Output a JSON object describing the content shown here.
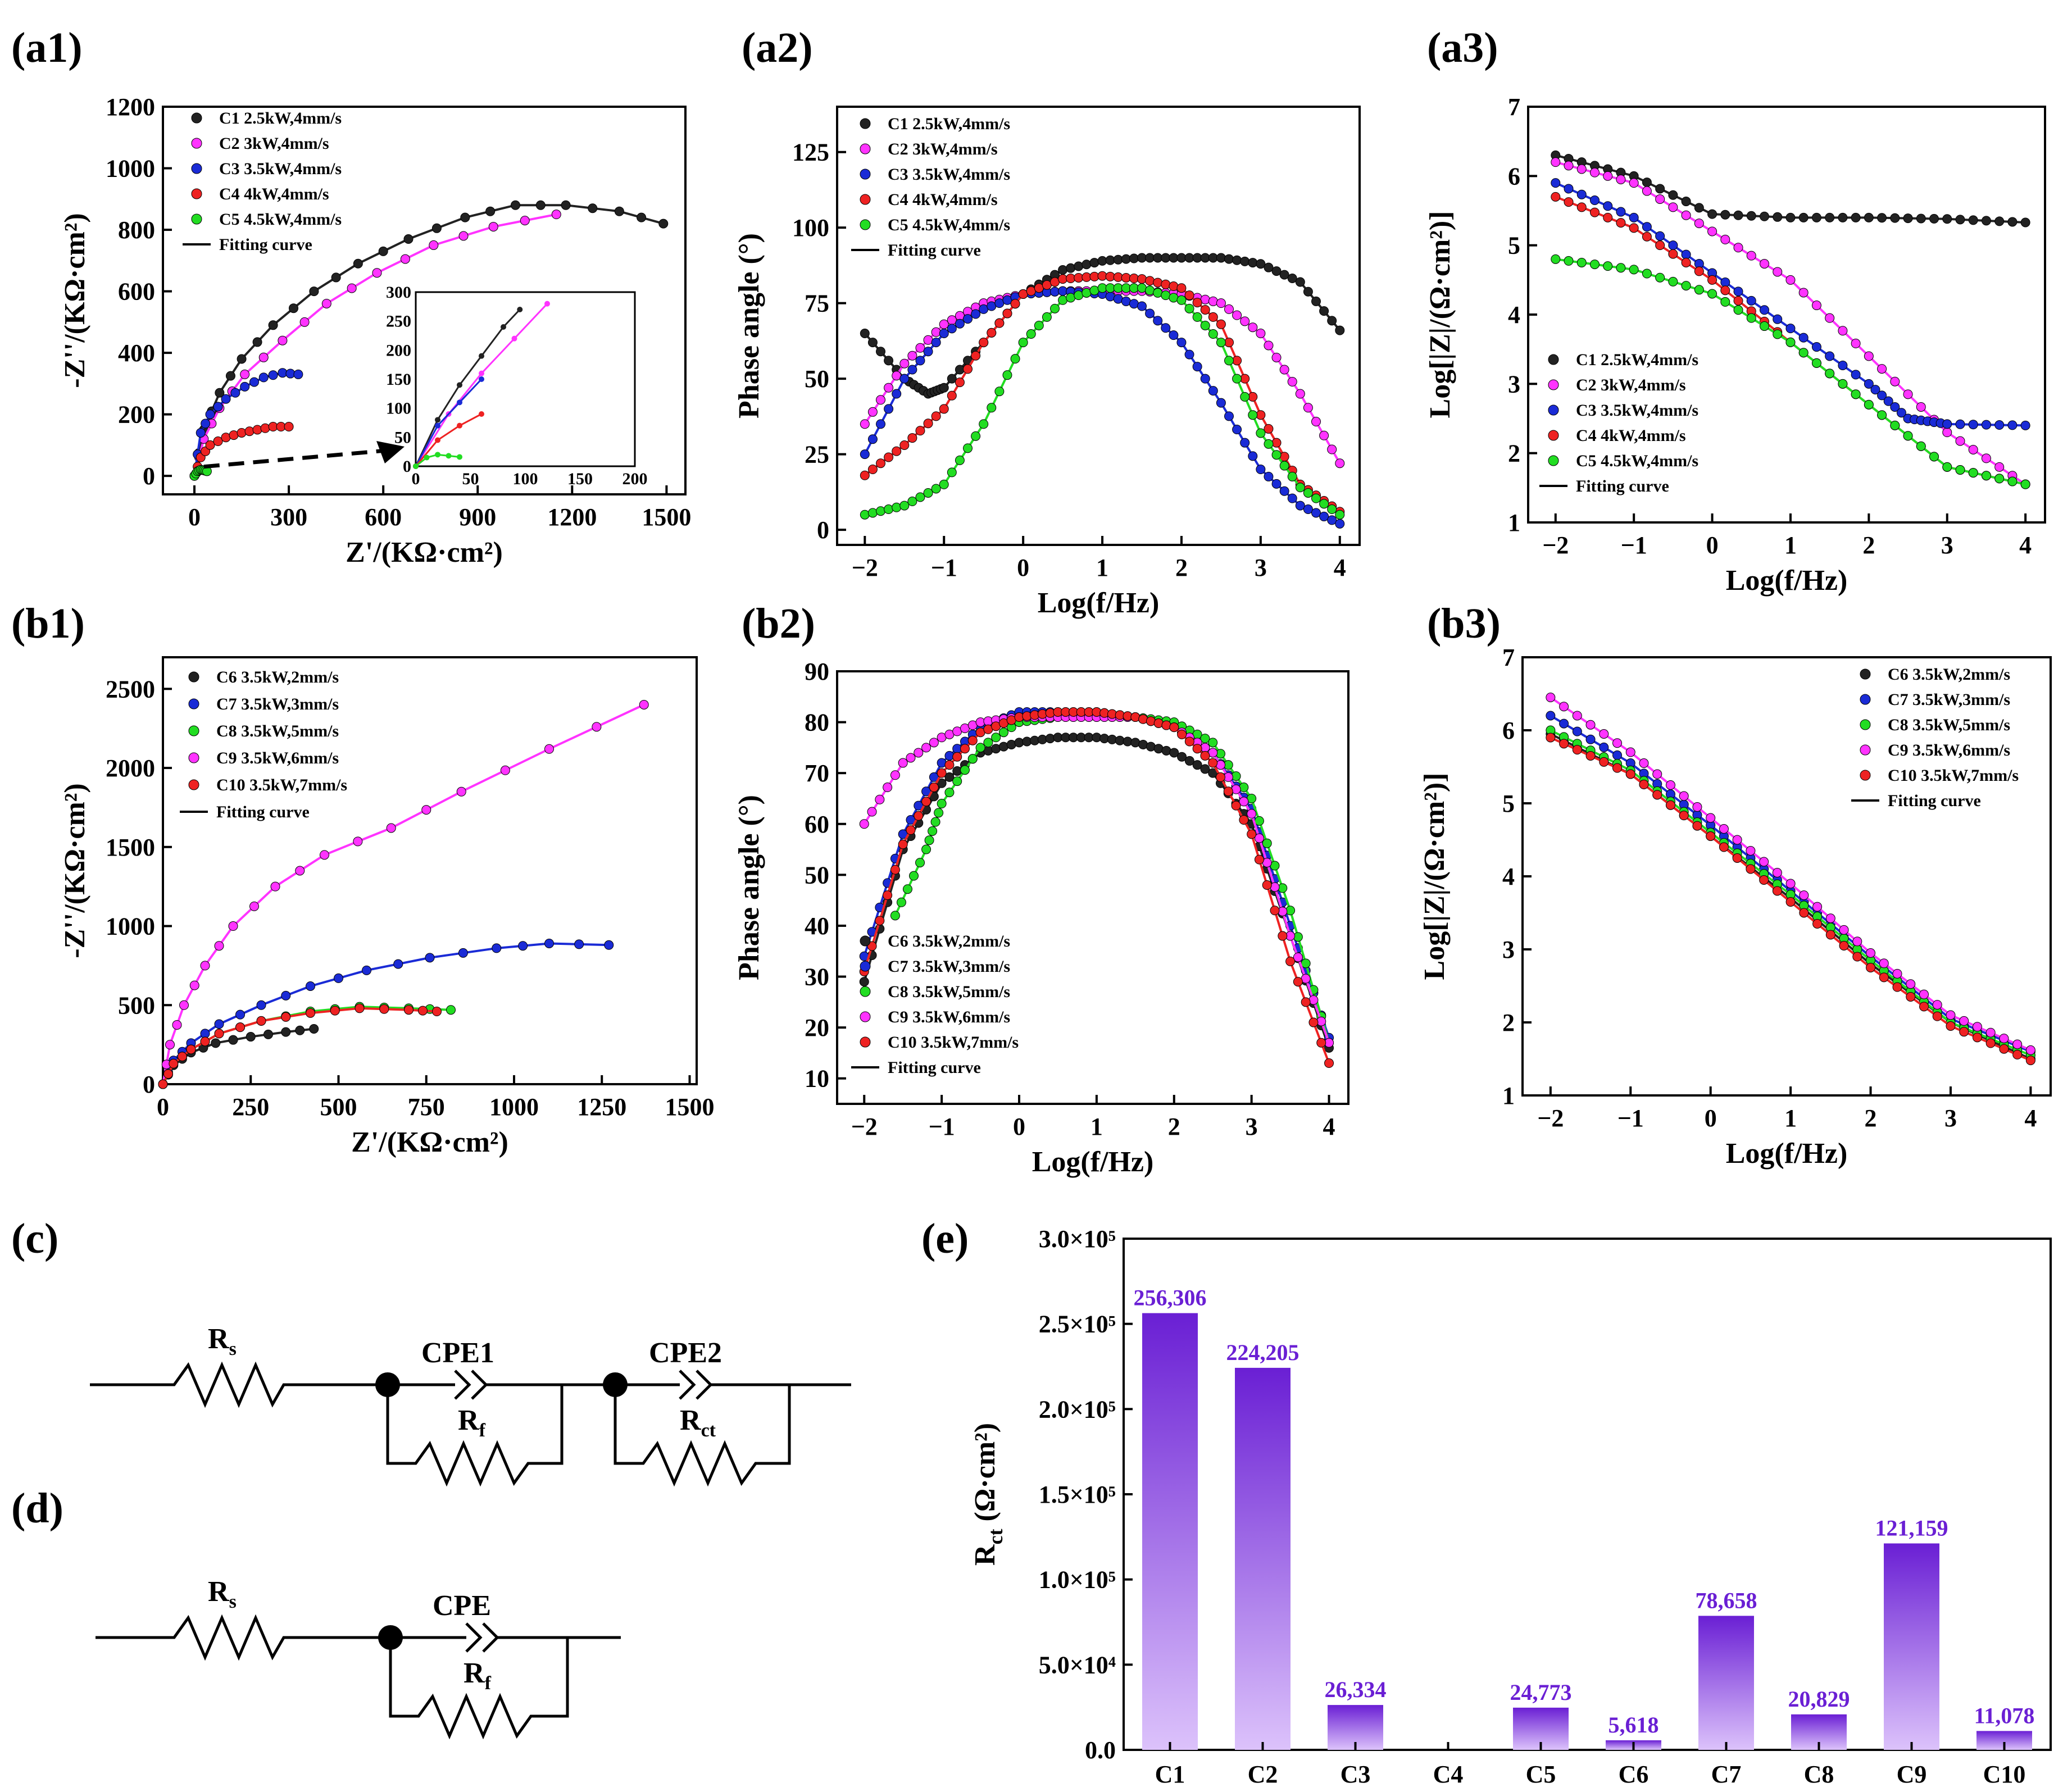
{
  "panel_labels": {
    "a1": "(a1)",
    "a2": "(a2)",
    "a3": "(a3)",
    "b1": "(b1)",
    "b2": "(b2)",
    "b3": "(b3)",
    "c": "(c)",
    "d": "(d)",
    "e": "(e)"
  },
  "colors": {
    "C1": "#222222",
    "C2": "#ff33ff",
    "C3": "#1a2bd6",
    "C4": "#ee2222",
    "C5": "#22dd22",
    "C6": "#222222",
    "C7": "#1a2bd6",
    "C8": "#22dd22",
    "C9": "#ff33ff",
    "C10": "#ee2222",
    "bar_top": "#6a1fd4",
    "bar_bottom": "#dcc2fb"
  },
  "legend_a": [
    "C1 2.5kW,4mm/s",
    "C2 3kW,4mm/s",
    "C3 3.5kW,4mm/s",
    "C4 4kW,4mm/s",
    "C5 4.5kW,4mm/s",
    "Fitting curve"
  ],
  "legend_b": [
    "C6 3.5kW,2mm/s",
    "C7 3.5kW,3mm/s",
    "C8 3.5kW,5mm/s",
    "C9 3.5kW,6mm/s",
    "C10 3.5kW,7mm/s",
    "Fitting curve"
  ],
  "circuit_c": {
    "rs": "R",
    "rs_sub": "s",
    "cpe1": "CPE1",
    "cpe2": "CPE2",
    "rf": "R",
    "rf_sub": "f",
    "rct": "R",
    "rct_sub": "ct"
  },
  "circuit_d": {
    "rs": "R",
    "rs_sub": "s",
    "cpe": "CPE",
    "rf": "R",
    "rf_sub": "f"
  },
  "chart_data": [
    {
      "id": "a1",
      "type": "scatter",
      "title": "",
      "xlabel": "Z'/(KΩ·cm²)",
      "ylabel": "-Z''/(KΩ·cm²)",
      "xlim": [
        -100,
        1560
      ],
      "ylim": [
        -60,
        1200
      ],
      "xticks": [
        0,
        300,
        600,
        900,
        1200,
        1500
      ],
      "yticks": [
        0,
        200,
        400,
        600,
        800,
        1000,
        1200
      ],
      "series": [
        {
          "name": "C1 2.5kW,4mm/s",
          "x": [
            0,
            30,
            80,
            150,
            250,
            380,
            520,
            680,
            860,
            1020,
            1180,
            1350,
            1490
          ],
          "y": [
            0,
            150,
            270,
            380,
            490,
            600,
            690,
            770,
            840,
            880,
            880,
            860,
            820
          ]
        },
        {
          "name": "C2 3kW,4mm/s",
          "x": [
            0,
            30,
            80,
            160,
            280,
            420,
            580,
            760,
            950,
            1150
          ],
          "y": [
            0,
            120,
            220,
            330,
            440,
            560,
            660,
            750,
            810,
            850
          ]
        },
        {
          "name": "C3 3.5kW,4mm/s",
          "x": [
            0,
            20,
            50,
            100,
            160,
            220,
            280,
            330
          ],
          "y": [
            0,
            140,
            200,
            250,
            290,
            320,
            335,
            330
          ]
        },
        {
          "name": "C4 4kW,4mm/s",
          "x": [
            0,
            20,
            50,
            100,
            150,
            200,
            250,
            300
          ],
          "y": [
            0,
            60,
            100,
            125,
            140,
            150,
            160,
            160
          ]
        },
        {
          "name": "C5 4.5kW,4mm/s",
          "x": [
            0,
            10,
            20,
            30,
            40
          ],
          "y": [
            0,
            15,
            20,
            18,
            15
          ]
        }
      ],
      "inset": {
        "xlim": [
          0,
          200
        ],
        "ylim": [
          0,
          300
        ],
        "xticks": [
          0,
          50,
          100,
          150,
          200
        ],
        "yticks": [
          0,
          50,
          100,
          150,
          200,
          250,
          300
        ]
      }
    },
    {
      "id": "a2",
      "type": "scatter",
      "xlabel": "Log(f/Hz)",
      "ylabel": "Phase angle (°)",
      "xlim": [
        -2.35,
        4.25
      ],
      "ylim": [
        -5,
        140
      ],
      "xticks": [
        -2,
        -1,
        0,
        1,
        2,
        3,
        4
      ],
      "yticks": [
        0,
        25,
        50,
        75,
        100,
        125
      ],
      "series": [
        {
          "name": "C1 2.5kW,4mm/s",
          "x": [
            -2,
            -1.5,
            -1.2,
            -1,
            -0.5,
            0,
            0.5,
            1,
            1.5,
            2,
            2.5,
            3,
            3.5,
            4
          ],
          "y": [
            65,
            50,
            45,
            47,
            62,
            78,
            86,
            89,
            90,
            90,
            90,
            88,
            82,
            66
          ]
        },
        {
          "name": "C2 3kW,4mm/s",
          "x": [
            -2,
            -1.5,
            -1,
            -0.5,
            0,
            0.5,
            1,
            1.5,
            2,
            2.5,
            3,
            3.5,
            4
          ],
          "y": [
            35,
            55,
            68,
            75,
            78,
            79,
            79,
            79,
            78,
            75,
            65,
            45,
            22
          ]
        },
        {
          "name": "C3 3.5kW,4mm/s",
          "x": [
            -2,
            -1.5,
            -1,
            -0.5,
            0,
            0.5,
            1,
            1.5,
            2,
            2.5,
            3,
            3.5,
            4
          ],
          "y": [
            25,
            50,
            65,
            73,
            78,
            79,
            78,
            74,
            62,
            42,
            20,
            8,
            2
          ]
        },
        {
          "name": "C4 4kW,4mm/s",
          "x": [
            -2,
            -1.5,
            -1,
            -0.5,
            0,
            0.5,
            1,
            1.5,
            2,
            2.5,
            3,
            3.5,
            4
          ],
          "y": [
            18,
            28,
            40,
            62,
            78,
            83,
            84,
            83,
            80,
            68,
            38,
            15,
            6
          ]
        },
        {
          "name": "C5 4.5kW,4mm/s",
          "x": [
            -2,
            -1.5,
            -1,
            -0.5,
            0,
            0.5,
            1,
            1.5,
            2,
            2.5,
            3,
            3.5,
            4
          ],
          "y": [
            5,
            8,
            15,
            35,
            62,
            76,
            80,
            80,
            76,
            62,
            32,
            14,
            5
          ]
        }
      ]
    },
    {
      "id": "a3",
      "type": "scatter",
      "xlabel": "Log(f/Hz)",
      "ylabel": "Log[|Z|/(Ω·cm²)]",
      "xlim": [
        -2.35,
        4.25
      ],
      "ylim": [
        1,
        7
      ],
      "xticks": [
        -2,
        -1,
        0,
        1,
        2,
        3,
        4
      ],
      "yticks": [
        1,
        2,
        3,
        4,
        5,
        6,
        7
      ],
      "series": [
        {
          "name": "C1 2.5kW,4mm/s",
          "x": [
            -2,
            -1,
            0,
            1,
            2,
            3,
            4
          ],
          "y": [
            6.3,
            6.0,
            5.45,
            5.4,
            5.4,
            5.38,
            5.33
          ]
        },
        {
          "name": "C2 3kW,4mm/s",
          "x": [
            -2,
            -1,
            0,
            1,
            2,
            3,
            4
          ],
          "y": [
            6.2,
            5.9,
            5.2,
            4.5,
            3.4,
            2.3,
            1.55
          ]
        },
        {
          "name": "C3 3.5kW,4mm/s",
          "x": [
            -2,
            -1,
            0,
            1,
            2,
            2.5,
            3,
            4
          ],
          "y": [
            5.9,
            5.4,
            4.6,
            3.8,
            3.0,
            2.5,
            2.42,
            2.4
          ]
        },
        {
          "name": "C4 4kW,4mm/s",
          "x": [
            -2,
            -1,
            0,
            1,
            2,
            3,
            4
          ],
          "y": [
            5.7,
            5.25,
            4.5,
            3.6,
            2.7,
            1.8,
            1.55
          ]
        },
        {
          "name": "C5 4.5kW,4mm/s",
          "x": [
            -2,
            -1,
            0,
            1,
            2,
            3,
            4
          ],
          "y": [
            4.8,
            4.65,
            4.3,
            3.6,
            2.7,
            1.8,
            1.55
          ]
        }
      ]
    },
    {
      "id": "b1",
      "type": "scatter",
      "xlabel": "Z'/(KΩ·cm²)",
      "ylabel": "-Z''/(KΩ·cm²)",
      "xlim": [
        0,
        1520
      ],
      "ylim": [
        0,
        2700
      ],
      "xticks": [
        0,
        250,
        500,
        750,
        1000,
        1250,
        1500
      ],
      "yticks": [
        0,
        500,
        1000,
        1500,
        2000,
        2500
      ],
      "series": [
        {
          "name": "C6 3.5kW,2mm/s",
          "x": [
            0,
            30,
            80,
            150,
            250,
            350,
            430
          ],
          "y": [
            0,
            120,
            200,
            260,
            300,
            330,
            350
          ]
        },
        {
          "name": "C7 3.5kW,3mm/s",
          "x": [
            0,
            30,
            80,
            160,
            280,
            420,
            580,
            760,
            950,
            1100,
            1270
          ],
          "y": [
            0,
            150,
            260,
            380,
            500,
            620,
            720,
            800,
            860,
            890,
            880
          ]
        },
        {
          "name": "C8 3.5kW,5mm/s",
          "x": [
            0,
            30,
            80,
            160,
            280,
            420,
            560,
            700,
            820
          ],
          "y": [
            0,
            130,
            220,
            320,
            400,
            460,
            490,
            480,
            470
          ]
        },
        {
          "name": "C9 3.5kW,6mm/s",
          "x": [
            0,
            20,
            60,
            120,
            200,
            320,
            460,
            650,
            850,
            1100,
            1370
          ],
          "y": [
            0,
            250,
            500,
            750,
            1000,
            1250,
            1450,
            1620,
            1850,
            2120,
            2400
          ]
        },
        {
          "name": "C10 3.5kW,7mm/s",
          "x": [
            0,
            30,
            80,
            160,
            280,
            420,
            560,
            700,
            780
          ],
          "y": [
            0,
            130,
            220,
            320,
            400,
            450,
            480,
            470,
            460
          ]
        }
      ]
    },
    {
      "id": "b2",
      "type": "scatter",
      "xlabel": "Log(f/Hz)",
      "ylabel": "Phase angle (°)",
      "xlim": [
        -2.35,
        4.25
      ],
      "ylim": [
        5,
        90
      ],
      "xticks": [
        -2,
        -1,
        0,
        1,
        2,
        3,
        4
      ],
      "yticks": [
        10,
        20,
        30,
        40,
        50,
        60,
        70,
        80,
        90
      ],
      "series": [
        {
          "name": "C6 3.5kW,2mm/s",
          "x": [
            -2,
            -1.5,
            -1,
            -0.5,
            0,
            0.5,
            1,
            1.5,
            2,
            2.5,
            3,
            3.5,
            4
          ],
          "y": [
            29,
            55,
            68,
            74,
            76,
            77,
            77,
            76,
            74,
            70,
            60,
            38,
            16
          ]
        },
        {
          "name": "C7 3.5kW,3mm/s",
          "x": [
            -2,
            -1.5,
            -1,
            -0.5,
            0,
            0.5,
            1,
            1.5,
            2,
            2.5,
            3,
            3.5,
            4
          ],
          "y": [
            34,
            58,
            72,
            79,
            82,
            82,
            82,
            81,
            79,
            74,
            63,
            40,
            18
          ]
        },
        {
          "name": "C8 3.5kW,5mm/s",
          "x": [
            -1.6,
            -1.2,
            -1,
            -0.5,
            0,
            0.5,
            1,
            1.5,
            2,
            2.5,
            3,
            3.5,
            4
          ],
          "y": [
            42,
            55,
            64,
            75,
            80,
            81,
            81,
            81,
            80,
            76,
            65,
            43,
            17
          ]
        },
        {
          "name": "C9 3.5kW,6mm/s",
          "x": [
            -2,
            -1.5,
            -1,
            -0.5,
            0,
            0.5,
            1,
            1.5,
            2,
            2.5,
            3,
            3.5,
            4
          ],
          "y": [
            60,
            72,
            77,
            80,
            81,
            81,
            81,
            81,
            79,
            74,
            62,
            38,
            17
          ]
        },
        {
          "name": "C10 3.5kW,7mm/s",
          "x": [
            -2,
            -1.5,
            -1,
            -0.5,
            0,
            0.5,
            1,
            1.5,
            2,
            2.5,
            3,
            3.5,
            4
          ],
          "y": [
            31,
            56,
            70,
            78,
            81,
            82,
            82,
            81,
            79,
            72,
            58,
            33,
            13
          ]
        }
      ]
    },
    {
      "id": "b3",
      "type": "scatter",
      "xlabel": "Log(f/Hz)",
      "ylabel": "Log[|Z|/(Ω·cm²)]",
      "xlim": [
        -2.35,
        4.25
      ],
      "ylim": [
        1,
        7
      ],
      "xticks": [
        -2,
        -1,
        0,
        1,
        2,
        3,
        4
      ],
      "yticks": [
        1,
        2,
        3,
        4,
        5,
        6,
        7
      ],
      "series": [
        {
          "name": "C6 3.5kW,2mm/s",
          "x": [
            -2,
            -1,
            0,
            1,
            2,
            3,
            4
          ],
          "y": [
            5.95,
            5.4,
            4.55,
            3.7,
            2.8,
            2.0,
            1.5
          ]
        },
        {
          "name": "C7 3.5kW,3mm/s",
          "x": [
            -2,
            -1,
            0,
            1,
            2,
            3,
            4
          ],
          "y": [
            6.2,
            5.55,
            4.7,
            3.8,
            2.9,
            2.05,
            1.6
          ]
        },
        {
          "name": "C8 3.5kW,5mm/s",
          "x": [
            -2,
            -1,
            0,
            1,
            2,
            3,
            4
          ],
          "y": [
            6.0,
            5.45,
            4.6,
            3.75,
            2.85,
            2.0,
            1.55
          ]
        },
        {
          "name": "C9 3.5kW,6mm/s",
          "x": [
            -2,
            -1,
            0,
            1,
            2,
            3,
            4
          ],
          "y": [
            6.45,
            5.7,
            4.8,
            3.9,
            2.95,
            2.1,
            1.62
          ]
        },
        {
          "name": "C10 3.5kW,7mm/s",
          "x": [
            -2,
            -1,
            0,
            1,
            2,
            3,
            4
          ],
          "y": [
            5.9,
            5.4,
            4.55,
            3.65,
            2.75,
            1.95,
            1.48
          ]
        }
      ]
    },
    {
      "id": "e",
      "type": "bar",
      "xlabel": "",
      "ylabel": "Rct (Ω·cm²)",
      "categories": [
        "C1",
        "C2",
        "C3",
        "C4",
        "C5",
        "C6",
        "C7",
        "C8",
        "C9",
        "C10"
      ],
      "values": [
        256306,
        224205,
        26334,
        0,
        24773,
        5618,
        78658,
        20829,
        121159,
        11078
      ],
      "labels": [
        "256,306",
        "224,205",
        "26,334",
        "",
        "24,773",
        "5,618",
        "78,658",
        "20,829",
        "121,159",
        "11,078"
      ],
      "ylim": [
        0,
        300000
      ],
      "yticks": [
        "0.0",
        "5.0×10⁴",
        "1.0×10⁵",
        "1.5×10⁵",
        "2.0×10⁵",
        "2.5×10⁵",
        "3.0×10⁵"
      ]
    }
  ]
}
